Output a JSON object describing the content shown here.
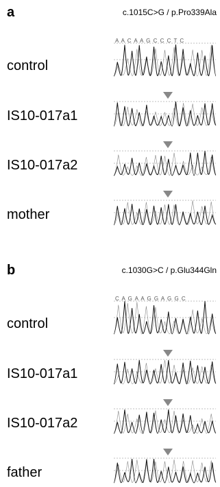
{
  "panels": [
    {
      "label": "a",
      "title": "c.1015C>G / p.Pro339Ala",
      "sequence": "A A C A A G C C C T C",
      "rows": [
        {
          "label": "control"
        },
        {
          "label": "IS10-017a1"
        },
        {
          "label": "IS10-017a2"
        },
        {
          "label": "mother"
        }
      ]
    },
    {
      "label": "b",
      "title": "c.1030G>C / p.Glu344Gln",
      "sequence": "C A G A A G G A G G C",
      "rows": [
        {
          "label": "control"
        },
        {
          "label": "IS10-017a1"
        },
        {
          "label": "IS10-017a2"
        },
        {
          "label": "father"
        }
      ]
    }
  ]
}
